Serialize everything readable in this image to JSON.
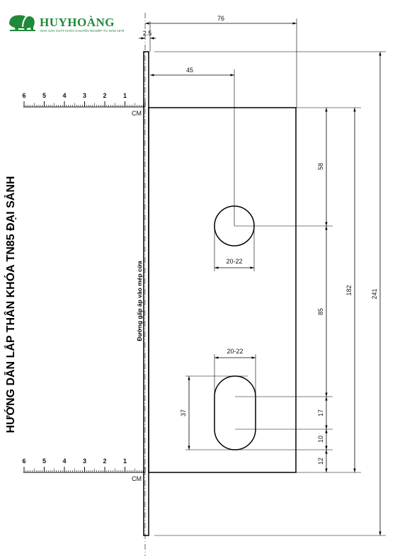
{
  "logo": {
    "brand_name": "HUYHOÀNG",
    "tagline": "NHÀ SẢN XUẤT KHÓA CHUYÊN NGHIỆP TỪ NĂM 1979",
    "brand_color": "#1f8a3a"
  },
  "title": "HƯỚNG DẪN LẮP THÂN KHÓA TN85 ĐẠI SẢNH",
  "edge_label": "Đường gấp áp vào mép cửa",
  "rulers": {
    "unit": "CM",
    "numbers": [
      "6",
      "5",
      "4",
      "3",
      "2",
      "1"
    ]
  },
  "dimensions": {
    "total_width": "76",
    "flange": "2.5",
    "center_offset": "45",
    "top_to_hole": "58",
    "hole_diameter": "20-22",
    "hole_spacing": "85",
    "slot_width": "20-22",
    "slot_height": "37",
    "slot_inner": "17",
    "slot_bottom": "10",
    "bottom_margin": "12",
    "plate_height": "182",
    "total_height": "241"
  }
}
